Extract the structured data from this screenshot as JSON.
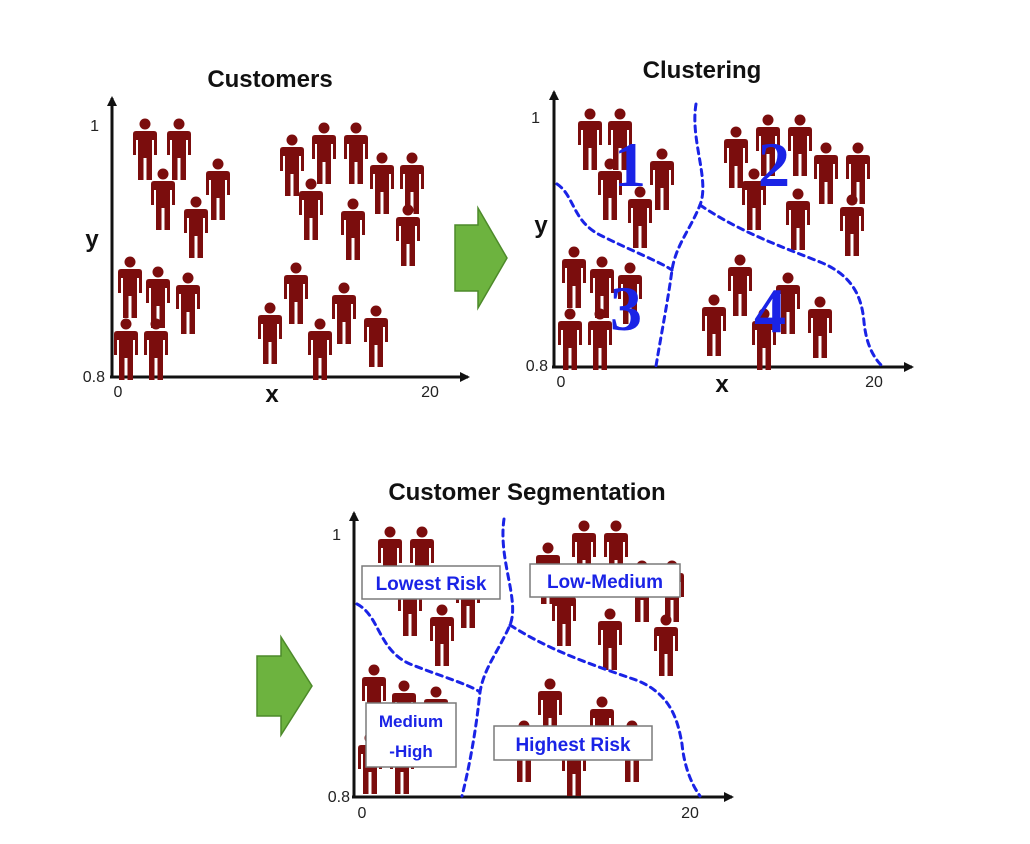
{
  "panels": {
    "customers": {
      "title": "Customers",
      "x_axis_label": "x",
      "y_axis_label": "y",
      "x_min_tick": "0",
      "x_max_tick": "20",
      "y_min_tick": "0.8",
      "y_max_tick": "1"
    },
    "clustering": {
      "title": "Clustering",
      "x_axis_label": "x",
      "y_axis_label": "y",
      "x_min_tick": "0",
      "x_max_tick": "20",
      "y_min_tick": "0.8",
      "y_max_tick": "1",
      "cluster_numbers": [
        "1",
        "2",
        "3",
        "4"
      ]
    },
    "segmentation": {
      "title": "Customer Segmentation",
      "x_min_tick": "0",
      "x_max_tick": "20",
      "y_min_tick": "0.8",
      "y_max_tick": "1",
      "segments": {
        "lowest": "Lowest Risk",
        "low_medium": "Low-Medium",
        "medium_high_line1": "Medium",
        "medium_high_line2": "-High",
        "highest": "Highest Risk"
      }
    }
  },
  "colors": {
    "person": "#7b0d0d",
    "boundary": "#1a23e6",
    "cluster_label": "#1a23e6",
    "arrow": "#6db33f"
  },
  "icons": {
    "person": "person-icon",
    "flow_arrow": "right-arrow-icon"
  }
}
